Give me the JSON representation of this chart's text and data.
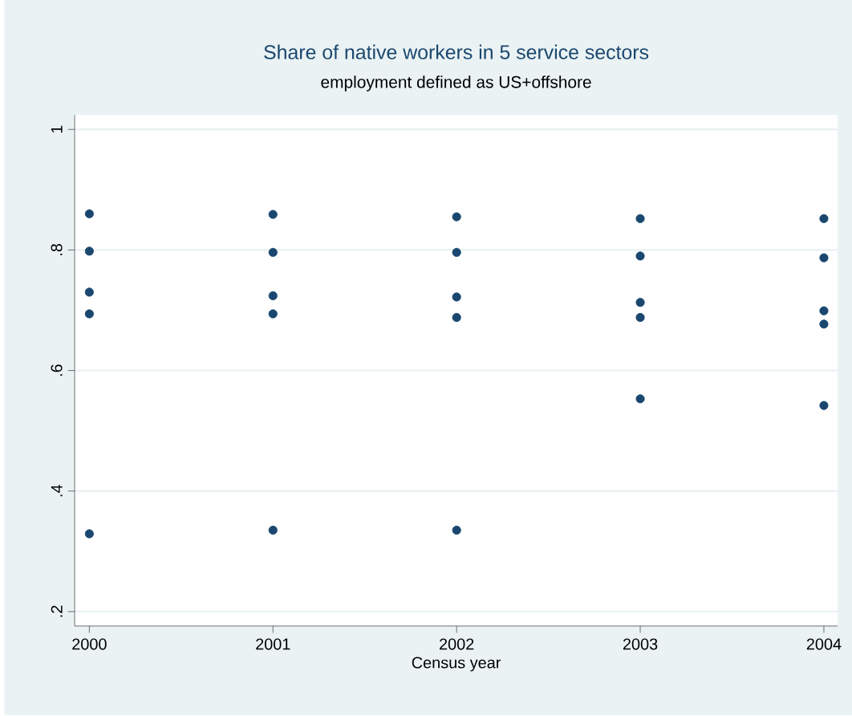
{
  "chart_data": {
    "type": "scatter",
    "title": "Share of native workers in 5 service sectors",
    "subtitle": "employment defined as US+offshore",
    "xlabel": "Census year",
    "series": [
      {
        "color": "#1a476f",
        "x": [
          2000,
          2000,
          2000,
          2000,
          2000,
          2001,
          2001,
          2001,
          2001,
          2001,
          2002,
          2002,
          2002,
          2002,
          2002,
          2003,
          2003,
          2003,
          2003,
          2003,
          2004,
          2004,
          2004,
          2004,
          2004
        ],
        "values": [
          0.86,
          0.798,
          0.73,
          0.694,
          0.329,
          0.859,
          0.796,
          0.724,
          0.694,
          0.335,
          0.855,
          0.796,
          0.722,
          0.688,
          0.335,
          0.852,
          0.79,
          0.713,
          0.688,
          0.553,
          0.852,
          0.787,
          0.699,
          0.677,
          0.542
        ]
      }
    ],
    "xlim": [
      1999.92,
      2004.075
    ],
    "xticks": [
      2000,
      2001,
      2002,
      2003,
      2004
    ],
    "ylim": [
      0.176,
      1.024
    ],
    "yticks": [
      {
        "value": 0.2,
        "label": ".2"
      },
      {
        "value": 0.4,
        "label": ".4"
      },
      {
        "value": 0.6,
        "label": ".6"
      },
      {
        "value": 0.8,
        "label": ".8"
      },
      {
        "value": 1,
        "label": "1"
      }
    ],
    "grid": "y",
    "marker": "circle"
  }
}
